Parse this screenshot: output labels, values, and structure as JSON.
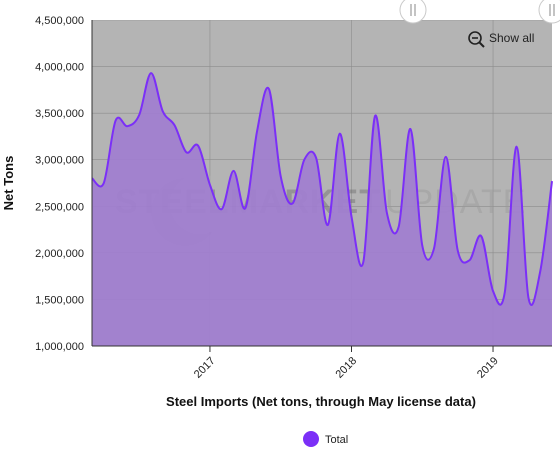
{
  "chart_data": {
    "type": "area",
    "title": "",
    "xlabel": "Steel Imports (Net tons, through May license data)",
    "ylabel": "Net Tons",
    "ylim": [
      1000000,
      4500000
    ],
    "y_ticks": [
      1000000,
      1500000,
      2000000,
      2500000,
      3000000,
      3500000,
      4000000,
      4500000
    ],
    "y_tick_labels": [
      "1,000,000",
      "1,500,000",
      "2,000,000",
      "2,500,000",
      "3,000,000",
      "3,500,000",
      "4,000,000",
      "4,500,000"
    ],
    "x_range": [
      "2016-03",
      "2019-06"
    ],
    "x_ticks": [
      {
        "date": "2017-01",
        "label": "2017"
      },
      {
        "date": "2018-01",
        "label": "2018"
      },
      {
        "date": "2019-01",
        "label": "2019"
      }
    ],
    "grid": true,
    "legend_position": "bottom-center",
    "x": [
      "2016-03",
      "2016-04",
      "2016-05",
      "2016-06",
      "2016-07",
      "2016-08",
      "2016-09",
      "2016-10",
      "2016-11",
      "2016-12",
      "2017-01",
      "2017-02",
      "2017-03",
      "2017-04",
      "2017-05",
      "2017-06",
      "2017-07",
      "2017-08",
      "2017-09",
      "2017-10",
      "2017-11",
      "2017-12",
      "2018-01",
      "2018-02",
      "2018-03",
      "2018-04",
      "2018-05",
      "2018-06",
      "2018-07",
      "2018-08",
      "2018-09",
      "2018-10",
      "2018-11",
      "2018-12",
      "2019-01",
      "2019-02",
      "2019-03",
      "2019-04",
      "2019-05",
      "2019-06"
    ],
    "series": [
      {
        "name": "Total",
        "color": "#7b2ff7",
        "fill": "#a17ed0",
        "values": [
          2800000,
          2750000,
          3420000,
          3360000,
          3480000,
          3930000,
          3520000,
          3370000,
          3080000,
          3150000,
          2730000,
          2470000,
          2880000,
          2480000,
          3310000,
          3760000,
          2820000,
          2530000,
          3000000,
          3020000,
          2300000,
          3280000,
          2390000,
          1900000,
          3470000,
          2430000,
          2280000,
          3330000,
          2080000,
          2050000,
          3030000,
          2030000,
          1920000,
          2180000,
          1590000,
          1580000,
          3140000,
          1520000,
          1800000,
          2770000
        ]
      }
    ]
  },
  "ui": {
    "show_all_label": "Show all",
    "zoom_icon": "zoom-out-icon",
    "watermark_text_bold": "STEELMARKET",
    "watermark_text_light": "UPDATE",
    "plot_background": "#b4b4b4",
    "line_color": "#7b2ff7",
    "area_color": "#a17ed0",
    "grid_color": "#8c8c8c",
    "legend_marker_color": "#7b2ff7"
  }
}
